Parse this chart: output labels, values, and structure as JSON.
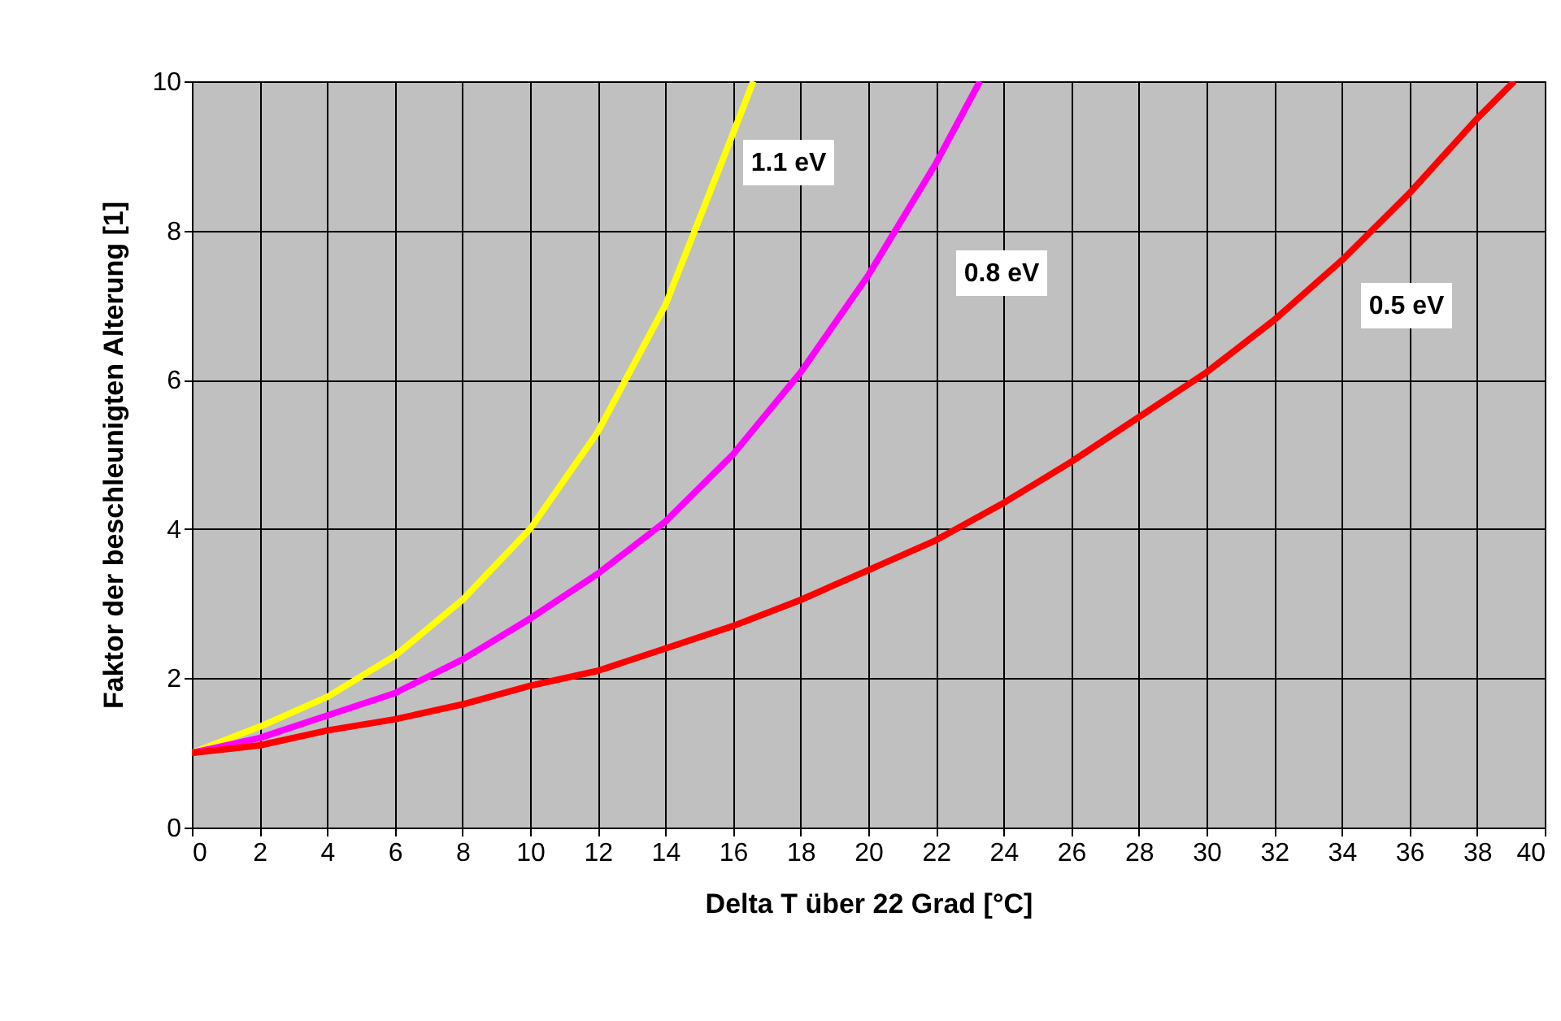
{
  "chart_data": {
    "type": "line",
    "xlabel": "Delta T über 22 Grad [°C]",
    "ylabel": "Faktor der beschleunigten Alterung [1]",
    "xlim": [
      0,
      40
    ],
    "xticks": [
      0,
      2,
      4,
      6,
      8,
      10,
      12,
      14,
      16,
      18,
      20,
      22,
      24,
      26,
      28,
      30,
      32,
      34,
      36,
      38,
      40
    ],
    "ylim": [
      0,
      10
    ],
    "yticks": [
      0,
      2,
      4,
      6,
      8,
      10
    ],
    "grid": true,
    "legend": false,
    "marker": "none",
    "line_style": "solid",
    "series": [
      {
        "color": "#ffff00",
        "x": [
          0,
          2,
          4,
          6,
          8,
          10,
          12,
          14,
          16,
          16.6
        ],
        "values": [
          1,
          1.35,
          1.75,
          2.3,
          3.05,
          4.0,
          5.3,
          7.0,
          9.3,
          10
        ]
      },
      {
        "color": "#ff00ff",
        "x": [
          0,
          2,
          4,
          6,
          8,
          10,
          12,
          14,
          16,
          18,
          20,
          22,
          23.3
        ],
        "values": [
          1,
          1.2,
          1.5,
          1.8,
          2.25,
          2.8,
          3.4,
          4.1,
          5.0,
          6.1,
          7.4,
          8.9,
          10
        ]
      },
      {
        "color": "#ff0000",
        "x": [
          0,
          2,
          4,
          6,
          8,
          10,
          12,
          14,
          16,
          18,
          20,
          22,
          24,
          26,
          28,
          30,
          32,
          34,
          36,
          38,
          39.1
        ],
        "values": [
          1,
          1.1,
          1.3,
          1.45,
          1.65,
          1.9,
          2.1,
          2.4,
          2.7,
          3.05,
          3.45,
          3.85,
          4.35,
          4.9,
          5.5,
          6.1,
          6.8,
          7.6,
          8.5,
          9.5,
          10
        ]
      }
    ],
    "annotations": [
      "1.1 eV",
      "0.8 eV",
      "0.5 eV"
    ]
  }
}
